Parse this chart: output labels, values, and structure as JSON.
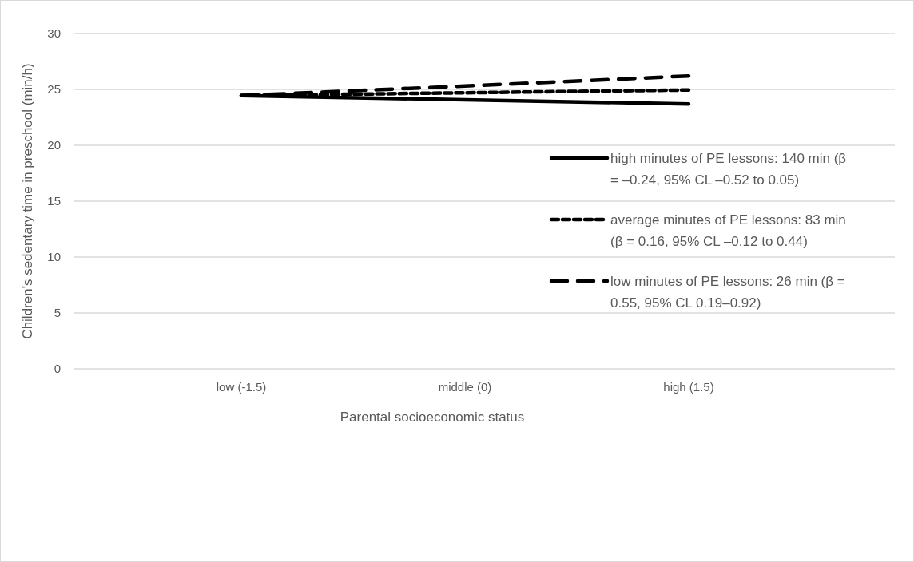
{
  "chart_data": {
    "type": "line",
    "xlabel": "Parental socioeconomic status",
    "ylabel": "Children's sedentary time in preschool (min/h)",
    "categories": [
      "low (-1.5)",
      "middle (0)",
      "high (1.5)"
    ],
    "ylim": [
      0,
      30
    ],
    "yticks": [
      0,
      5,
      10,
      15,
      20,
      25,
      30
    ],
    "grid": "y",
    "legend": "right",
    "marker": "none",
    "series": [
      {
        "name": "high minutes of PE lessons: 140 min (β = –0.24, 95% CL –0.52 to 0.05)",
        "color": "#000000",
        "line_style": "solid",
        "values": [
          24.45,
          24.07,
          23.7
        ]
      },
      {
        "name": "average minutes of PE lessons: 83 min (β = 0.16, 95% CL –0.12 to 0.44)",
        "color": "#000000",
        "line_style": "dashed",
        "values": [
          24.45,
          24.7,
          24.95
        ]
      },
      {
        "name": "low minutes of PE lessons: 26 min (β = 0.55, 95% CL 0.19–0.92)",
        "color": "#000000",
        "line_style": "dashed",
        "values": [
          24.45,
          25.3,
          26.2
        ]
      }
    ]
  }
}
